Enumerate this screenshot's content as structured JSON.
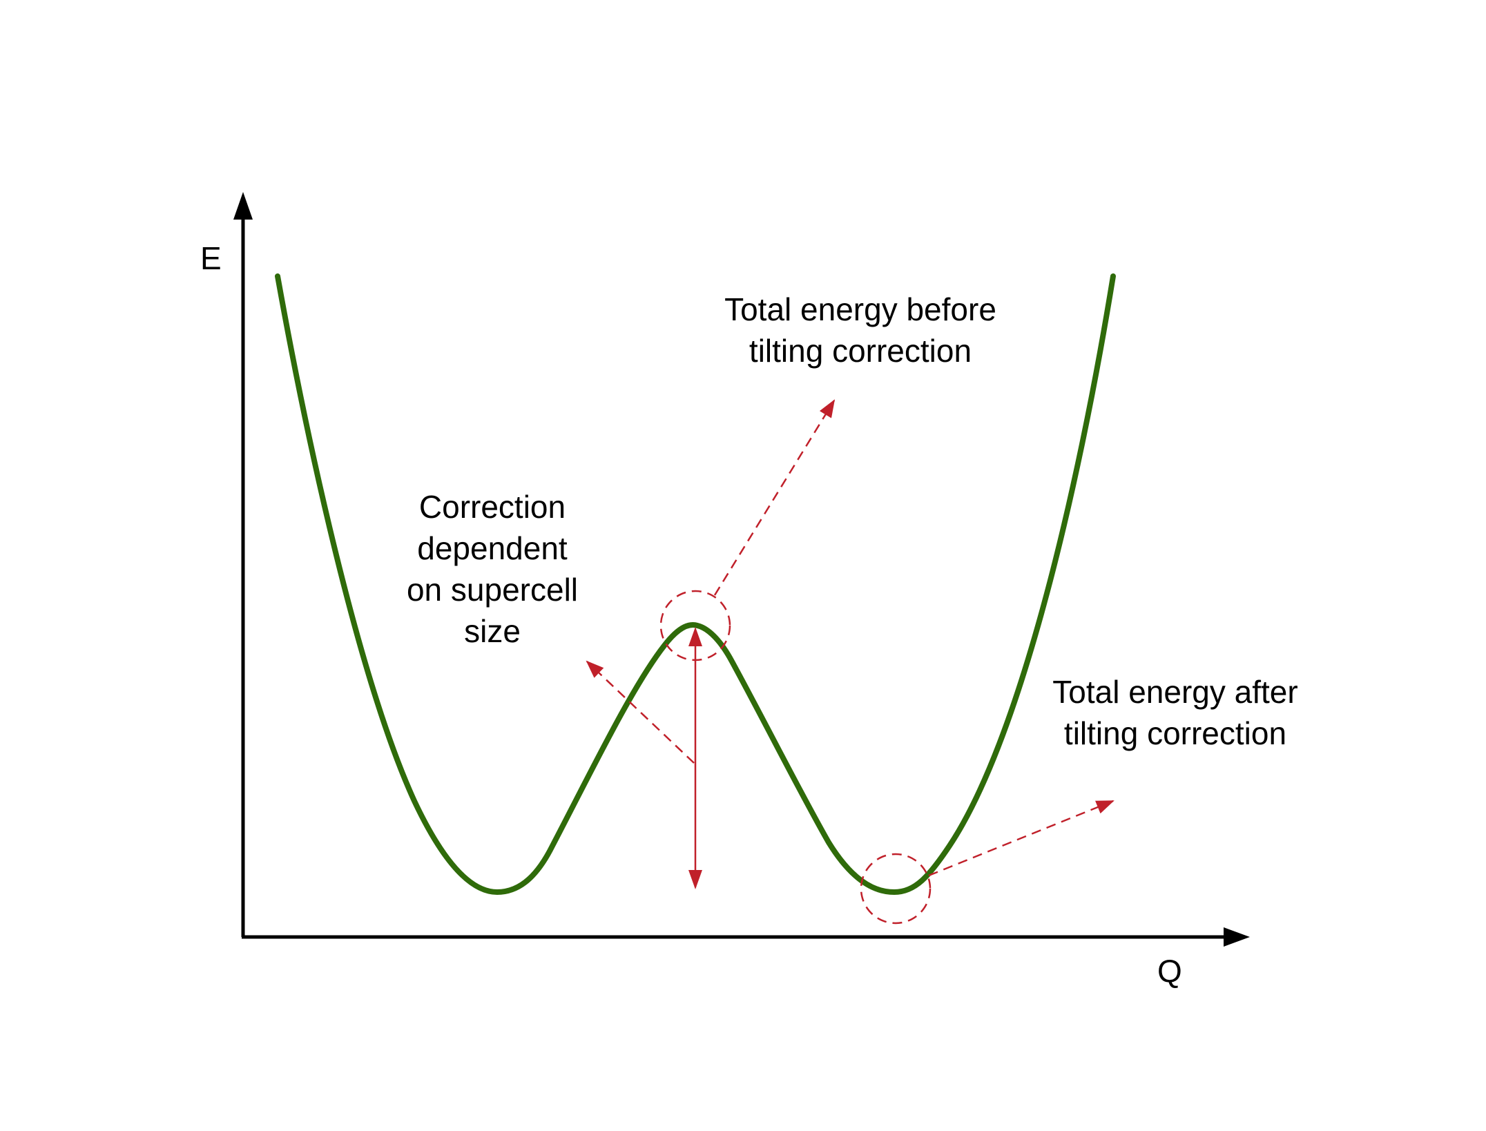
{
  "axes": {
    "y_label": "E",
    "x_label": "Q"
  },
  "annotations": {
    "before": {
      "line1": "Total energy before",
      "line2": "tilting correction"
    },
    "after": {
      "line1": "Total energy after",
      "line2": "tilting correction"
    },
    "correction": {
      "line1": "Correction",
      "line2": "dependent",
      "line3": "on supercell",
      "line4": "size"
    }
  },
  "colors": {
    "curve": "#2f6b0a",
    "annotation": "#c0202a",
    "axis": "#000000"
  }
}
